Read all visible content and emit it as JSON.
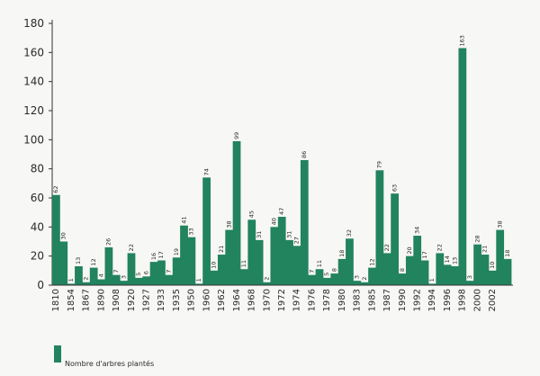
{
  "chart_data": {
    "type": "bar",
    "color": "#22835f",
    "ylim": [
      0,
      180
    ],
    "yticks": [
      0,
      20,
      40,
      60,
      80,
      100,
      120,
      140,
      160,
      180
    ],
    "grid": false,
    "legend_position": "bottom-left",
    "series": [
      {
        "name": "Nombre d'arbres plantés",
        "values": [
          62,
          30,
          1,
          13,
          2,
          12,
          4,
          26,
          7,
          3,
          22,
          5,
          6,
          16,
          17,
          7,
          19,
          41,
          33,
          1,
          74,
          10,
          21,
          38,
          99,
          11,
          45,
          31,
          2,
          40,
          47,
          31,
          27,
          86,
          7,
          11,
          5,
          8,
          18,
          32,
          3,
          2,
          12,
          79,
          22,
          63,
          8,
          20,
          34,
          17,
          1,
          22,
          14,
          13,
          163,
          3,
          28,
          21,
          10,
          38,
          18
        ]
      }
    ],
    "x_tick_labels": [
      "1810",
      "1854",
      "1867",
      "1890",
      "1908",
      "1920",
      "1927",
      "1933",
      "1935",
      "1950",
      "1960",
      "1962",
      "1964",
      "1968",
      "1970",
      "1972",
      "1974",
      "1976",
      "1978",
      "1980",
      "1983",
      "1985",
      "1987",
      "1990",
      "1992",
      "1994",
      "1996",
      "1998",
      "2000",
      "2002"
    ]
  }
}
